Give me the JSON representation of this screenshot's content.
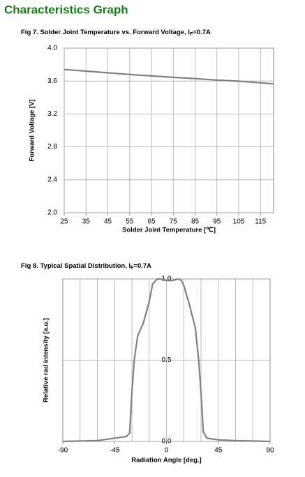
{
  "header": {
    "title": "Characteristics Graph"
  },
  "chart_data": [
    {
      "type": "line",
      "title": "Fig 7. Solder Joint Temperature vs. Forward Voltage, I",
      "title_subscript": "F",
      "title_suffix": "=0.7A",
      "x_label": "Solder Joint Temperature [℃]",
      "y_label": "Forward Voltage [V]",
      "x": [
        25,
        35,
        45,
        55,
        65,
        75,
        85,
        95,
        105,
        115,
        121
      ],
      "series": [
        {
          "color": "#808080",
          "values": [
            3.74,
            3.72,
            3.7,
            3.68,
            3.662,
            3.645,
            3.63,
            3.612,
            3.598,
            3.578,
            3.565
          ]
        }
      ],
      "xlim": [
        25,
        121
      ],
      "xticks": [
        25,
        35,
        45,
        55,
        65,
        75,
        85,
        95,
        105,
        115
      ],
      "ylim": [
        2.0,
        4.0
      ],
      "yticks": [
        {
          "value": 2.0,
          "label": "2.0"
        },
        2.4,
        2.8,
        3.2,
        3.6,
        {
          "value": 4.0,
          "label": "4.0"
        }
      ],
      "grid": true
    },
    {
      "type": "line",
      "title": "Fig 8. Typical Spatial Distribution, I",
      "title_subscript": "F",
      "title_suffix": "=0.7A",
      "x_label": "Radiation Angle  [deg.]",
      "y_label": "Relative rad intensity [a.u.]",
      "x": [
        -90,
        -60,
        -45,
        -35,
        -32,
        -30,
        -28,
        -25,
        -20,
        -15,
        -12,
        -8,
        -5,
        0,
        5,
        10,
        13,
        15,
        20,
        25,
        28,
        30,
        32,
        35,
        45,
        60,
        90
      ],
      "series": [
        {
          "color": "#808080",
          "values": [
            0,
            0.005,
            0.02,
            0.03,
            0.05,
            0.3,
            0.5,
            0.65,
            0.73,
            0.86,
            0.97,
            1.0,
            1.0,
            0.99,
            0.99,
            1.0,
            0.99,
            0.96,
            0.84,
            0.7,
            0.5,
            0.3,
            0.06,
            0.02,
            0.01,
            0.005,
            0
          ]
        }
      ],
      "xlim": [
        -90,
        90
      ],
      "xticks": [
        -90,
        -45,
        0,
        45,
        90
      ],
      "xgrid": [
        -75,
        -60,
        -45,
        -30,
        -15,
        0,
        15,
        30,
        45,
        60,
        75
      ],
      "ylim": [
        0,
        1
      ],
      "yticks": [
        {
          "value": 0,
          "label": "0.0"
        },
        0.5,
        {
          "value": 1,
          "label": "1.0"
        }
      ],
      "grid": true
    }
  ]
}
